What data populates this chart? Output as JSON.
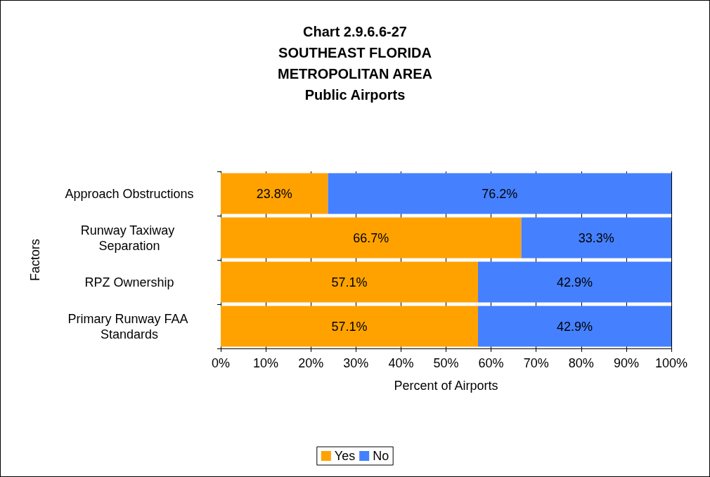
{
  "chart_data": {
    "type": "bar",
    "orientation": "horizontal",
    "stacked": true,
    "title": "Chart 2.9.6.6-27\nSOUTHEAST FLORIDA\nMETROPOLITAN AREA\nPublic Airports",
    "xlabel": "Percent of Airports",
    "ylabel": "Factors",
    "categories": [
      "Approach Obstructions",
      "Runway Taxiway Separation",
      "RPZ Ownership",
      "Primary Runway FAA Standards"
    ],
    "series": [
      {
        "name": "Yes",
        "color": "#ffa200",
        "values": [
          23.8,
          66.7,
          57.1,
          57.1
        ],
        "value_labels": [
          "23.8%",
          "66.7%",
          "57.1%",
          "57.1%"
        ]
      },
      {
        "name": "No",
        "color": "#4580ff",
        "values": [
          76.2,
          33.3,
          42.9,
          42.9
        ],
        "value_labels": [
          "76.2%",
          "33.3%",
          "42.9%",
          "42.9%"
        ]
      }
    ],
    "xlim": [
      0,
      100
    ],
    "xticks": [
      {
        "value": 0,
        "label": "0%"
      },
      {
        "value": 10,
        "label": "10%"
      },
      {
        "value": 20,
        "label": "20%"
      },
      {
        "value": 30,
        "label": "30%"
      },
      {
        "value": 40,
        "label": "40%"
      },
      {
        "value": 50,
        "label": "50%"
      },
      {
        "value": 60,
        "label": "60%"
      },
      {
        "value": 70,
        "label": "70%"
      },
      {
        "value": 80,
        "label": "80%"
      },
      {
        "value": 90,
        "label": "90%"
      },
      {
        "value": 100,
        "label": "100%"
      }
    ],
    "grid": "x",
    "legend": "bottom"
  }
}
